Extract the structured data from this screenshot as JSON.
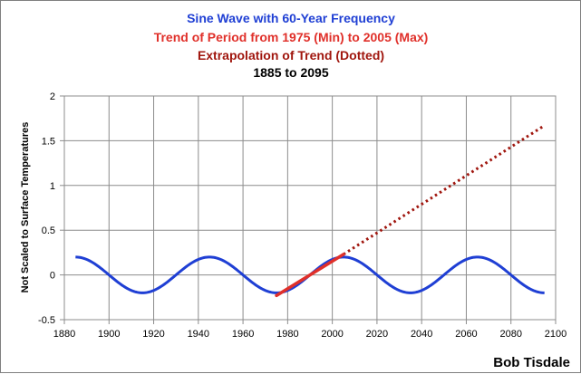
{
  "chart_data": {
    "type": "line",
    "titles": [
      {
        "text": "Sine Wave with 60-Year Frequency",
        "color": "#1f3fd4"
      },
      {
        "text": "Trend of Period from 1975 (Min) to 2005 (Max)",
        "color": "#e0302a"
      },
      {
        "text": "Extrapolation of Trend (Dotted)",
        "color": "#a0160e"
      },
      {
        "text": "1885 to 2095",
        "color": "#000000"
      }
    ],
    "ylabel": "Not Scaled to Surface Temperatures",
    "xlabel": "",
    "xlim": [
      1880,
      2100
    ],
    "ylim": [
      -0.5,
      2
    ],
    "x_ticks": [
      1880,
      1900,
      1920,
      1940,
      1960,
      1980,
      2000,
      2020,
      2040,
      2060,
      2080,
      2100
    ],
    "y_ticks": [
      -0.5,
      0,
      0.5,
      1,
      1.5,
      2
    ],
    "y_tick_labels": [
      "-0.5",
      "0",
      "0.5",
      "1",
      "1.5",
      "2"
    ],
    "grid": true,
    "series": [
      {
        "style": "solid",
        "color": "#1f3fd4",
        "function": "0.2*sin(2*pi*(x-1930)/60)",
        "x_range": [
          1885,
          2095
        ],
        "amplitude": 0.2,
        "period": 60,
        "max_at": 1945
      },
      {
        "style": "solid",
        "color": "#e0302a",
        "x": [
          1975,
          2005
        ],
        "y": [
          -0.23,
          0.23
        ]
      },
      {
        "style": "dotted",
        "color": "#a0160e",
        "x": [
          2005,
          2095
        ],
        "y": [
          0.23,
          1.67
        ]
      }
    ],
    "credit": "Bob Tisdale"
  }
}
